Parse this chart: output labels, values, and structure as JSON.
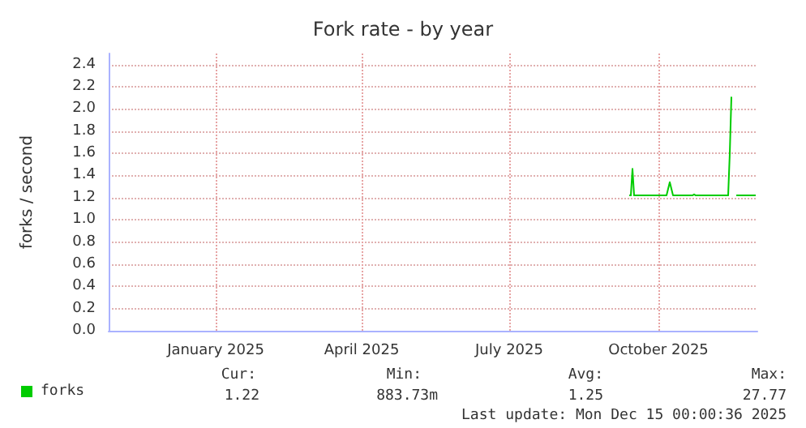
{
  "chart_data": {
    "type": "line",
    "title": "Fork rate - by year",
    "ylabel": "forks / second",
    "x": [
      "2025-09-27",
      "2025-09-28",
      "2025-09-29",
      "2025-09-30",
      "2025-10-20",
      "2025-10-22",
      "2025-10-24",
      "2025-11-05",
      "2025-11-06",
      "2025-11-07",
      "2025-11-27",
      "2025-11-28",
      "2025-11-29",
      "2025-11-30",
      "2025-12-02",
      "2025-12-14"
    ],
    "series": [
      {
        "name": "forks",
        "color": "#00cc00",
        "values": [
          1.22,
          1.22,
          1.46,
          1.22,
          1.22,
          1.34,
          1.22,
          1.22,
          1.23,
          1.22,
          1.22,
          1.6,
          2.11,
          null,
          1.22,
          1.22
        ]
      }
    ],
    "xlim": [
      "2024-11-10",
      "2025-12-15"
    ],
    "xticks": [
      {
        "value": "2025-01-15",
        "label": "January 2025"
      },
      {
        "value": "2025-04-15",
        "label": "April 2025"
      },
      {
        "value": "2025-07-15",
        "label": "July 2025"
      },
      {
        "value": "2025-10-15",
        "label": "October 2025"
      }
    ],
    "ylim": [
      0,
      2.5
    ],
    "yticks": [
      {
        "value": 0,
        "label": "0.0"
      },
      {
        "value": 0.2,
        "label": "0.2"
      },
      {
        "value": 0.4,
        "label": "0.4"
      },
      {
        "value": 0.6,
        "label": "0.6"
      },
      {
        "value": 0.8,
        "label": "0.8"
      },
      {
        "value": 1,
        "label": "1.0"
      },
      {
        "value": 1.2,
        "label": "1.2"
      },
      {
        "value": 1.4,
        "label": "1.4"
      },
      {
        "value": 1.6,
        "label": "1.6"
      },
      {
        "value": 1.8,
        "label": "1.8"
      },
      {
        "value": 2,
        "label": "2.0"
      },
      {
        "value": 2.2,
        "label": "2.2"
      },
      {
        "value": 2.4,
        "label": "2.4"
      }
    ],
    "grid": true,
    "legend": "bottom left",
    "marker": "none",
    "line_style": "solid",
    "annotations": [
      "Cur:",
      "1.22",
      "Min:",
      "883.73m",
      "Avg:",
      "1.25",
      "Max:",
      "27.77",
      "Last update: Mon Dec 15 00:00:36 2025"
    ]
  }
}
